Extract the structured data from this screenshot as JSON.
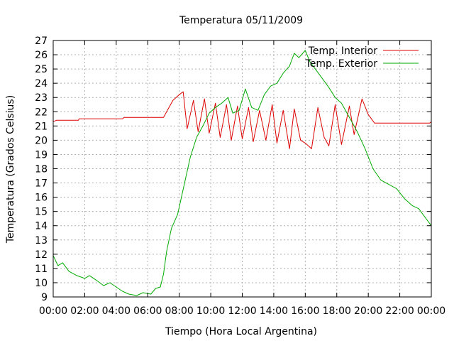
{
  "chart_data": {
    "type": "line",
    "title": "Temperatura 05/11/2009",
    "xlabel": "Tiempo (Hora Local Argentina)",
    "ylabel": "Temperatura (Grados Celsius)",
    "xlim": [
      0,
      24
    ],
    "ylim": [
      9,
      27
    ],
    "xticks": [
      "00:00",
      "02:00",
      "04:00",
      "06:00",
      "08:00",
      "10:00",
      "12:00",
      "14:00",
      "16:00",
      "18:00",
      "20:00",
      "22:00",
      "00:00"
    ],
    "yticks": [
      "9",
      "10",
      "11",
      "12",
      "13",
      "14",
      "15",
      "16",
      "17",
      "18",
      "19",
      "20",
      "21",
      "22",
      "23",
      "24",
      "25",
      "26",
      "27"
    ],
    "grid": true,
    "legend_position": "top-right",
    "colors": {
      "interior": "#dd0000",
      "exterior": "#00aa00",
      "grid": "#b0b0b0",
      "axis": "#000000"
    },
    "series": [
      {
        "name": "Temp. Interior",
        "color": "#dd0000",
        "points": [
          [
            0,
            21.3
          ],
          [
            0.2,
            21.4
          ],
          [
            1.6,
            21.4
          ],
          [
            1.65,
            21.5
          ],
          [
            4.4,
            21.5
          ],
          [
            4.5,
            21.6
          ],
          [
            7.0,
            21.6
          ],
          [
            7.3,
            22.2
          ],
          [
            7.6,
            22.8
          ],
          [
            8.0,
            23.2
          ],
          [
            8.25,
            23.4
          ],
          [
            8.5,
            20.8
          ],
          [
            8.9,
            22.8
          ],
          [
            9.2,
            20.6
          ],
          [
            9.6,
            22.9
          ],
          [
            9.9,
            20.5
          ],
          [
            10.3,
            22.6
          ],
          [
            10.6,
            20.2
          ],
          [
            11.0,
            22.5
          ],
          [
            11.3,
            20.0
          ],
          [
            11.7,
            22.4
          ],
          [
            12.0,
            20.1
          ],
          [
            12.4,
            22.3
          ],
          [
            12.7,
            19.9
          ],
          [
            13.1,
            22.1
          ],
          [
            13.5,
            20.0
          ],
          [
            13.9,
            22.5
          ],
          [
            14.2,
            19.8
          ],
          [
            14.6,
            22.1
          ],
          [
            15.0,
            19.4
          ],
          [
            15.3,
            22.2
          ],
          [
            15.7,
            20.0
          ],
          [
            16.0,
            19.8
          ],
          [
            16.4,
            19.4
          ],
          [
            16.8,
            22.3
          ],
          [
            17.2,
            20.2
          ],
          [
            17.5,
            19.6
          ],
          [
            17.9,
            22.5
          ],
          [
            18.3,
            19.7
          ],
          [
            18.8,
            22.4
          ],
          [
            19.1,
            20.4
          ],
          [
            19.6,
            22.9
          ],
          [
            20.0,
            21.8
          ],
          [
            20.4,
            21.2
          ],
          [
            22.0,
            21.2
          ],
          [
            23.9,
            21.2
          ],
          [
            24,
            21.3
          ]
        ]
      },
      {
        "name": "Temp. Exterior",
        "color": "#00aa00",
        "points": [
          [
            0,
            11.9
          ],
          [
            0.3,
            11.2
          ],
          [
            0.6,
            11.4
          ],
          [
            1.0,
            10.8
          ],
          [
            1.5,
            10.5
          ],
          [
            2.0,
            10.3
          ],
          [
            2.3,
            10.5
          ],
          [
            2.7,
            10.2
          ],
          [
            3.2,
            9.8
          ],
          [
            3.6,
            10.0
          ],
          [
            4.0,
            9.7
          ],
          [
            4.4,
            9.4
          ],
          [
            4.8,
            9.2
          ],
          [
            5.3,
            9.1
          ],
          [
            5.7,
            9.3
          ],
          [
            6.2,
            9.2
          ],
          [
            6.5,
            9.6
          ],
          [
            6.8,
            9.7
          ],
          [
            7.0,
            10.6
          ],
          [
            7.2,
            12.2
          ],
          [
            7.5,
            13.8
          ],
          [
            7.9,
            14.8
          ],
          [
            8.3,
            16.8
          ],
          [
            8.7,
            18.8
          ],
          [
            9.1,
            20.2
          ],
          [
            9.5,
            21.0
          ],
          [
            9.9,
            21.9
          ],
          [
            10.3,
            22.3
          ],
          [
            10.7,
            22.6
          ],
          [
            11.1,
            23.0
          ],
          [
            11.4,
            21.9
          ],
          [
            11.8,
            22.1
          ],
          [
            12.2,
            23.6
          ],
          [
            12.6,
            22.3
          ],
          [
            13.0,
            22.1
          ],
          [
            13.4,
            23.2
          ],
          [
            13.8,
            23.8
          ],
          [
            14.2,
            24.0
          ],
          [
            14.6,
            24.7
          ],
          [
            15.0,
            25.2
          ],
          [
            15.3,
            26.1
          ],
          [
            15.6,
            25.8
          ],
          [
            16.0,
            26.3
          ],
          [
            16.3,
            25.5
          ],
          [
            16.7,
            24.9
          ],
          [
            17.1,
            24.3
          ],
          [
            17.5,
            23.7
          ],
          [
            17.9,
            23.0
          ],
          [
            18.3,
            22.6
          ],
          [
            18.8,
            21.6
          ],
          [
            19.3,
            20.6
          ],
          [
            19.8,
            19.4
          ],
          [
            20.3,
            18.0
          ],
          [
            20.8,
            17.2
          ],
          [
            21.3,
            16.9
          ],
          [
            21.8,
            16.6
          ],
          [
            22.3,
            15.9
          ],
          [
            22.8,
            15.4
          ],
          [
            23.2,
            15.2
          ],
          [
            23.6,
            14.6
          ],
          [
            24,
            14.0
          ]
        ]
      }
    ]
  }
}
